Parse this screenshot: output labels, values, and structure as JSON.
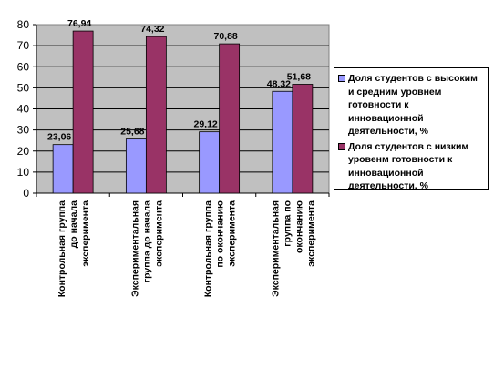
{
  "chart_data": {
    "type": "bar",
    "categories": [
      [
        "Контрольная группа",
        "до начала",
        "эксперимента"
      ],
      [
        "Экспериментальная",
        "группа до начала",
        "эксперимента"
      ],
      [
        "Контрольная группа",
        "по окончанию",
        "эксперимента"
      ],
      [
        "Экспериментальная",
        "группа по",
        "окончанию",
        "эксперимента"
      ]
    ],
    "series": [
      {
        "name": "Доля студентов с высоким и средним уровнем готовности к инновационной деятельности, %",
        "values": [
          23.06,
          25.68,
          29.12,
          48.32
        ],
        "labels": [
          "23,06",
          "25,68",
          "29,12",
          "48,32"
        ],
        "color": "#9999ff"
      },
      {
        "name": "Доля студентов с низким уровенм готовности к инновационной деятельности, %",
        "values": [
          76.94,
          74.32,
          70.88,
          51.68
        ],
        "labels": [
          "76,94",
          "74,32",
          "70,88",
          "51,68"
        ],
        "color": "#993366"
      }
    ],
    "ylim": [
      0,
      80
    ],
    "yticks": [
      "0",
      "10",
      "20",
      "30",
      "40",
      "50",
      "60",
      "70",
      "80"
    ],
    "grid": true,
    "plot_background": "#c0c0c0",
    "legend_position": "right"
  }
}
